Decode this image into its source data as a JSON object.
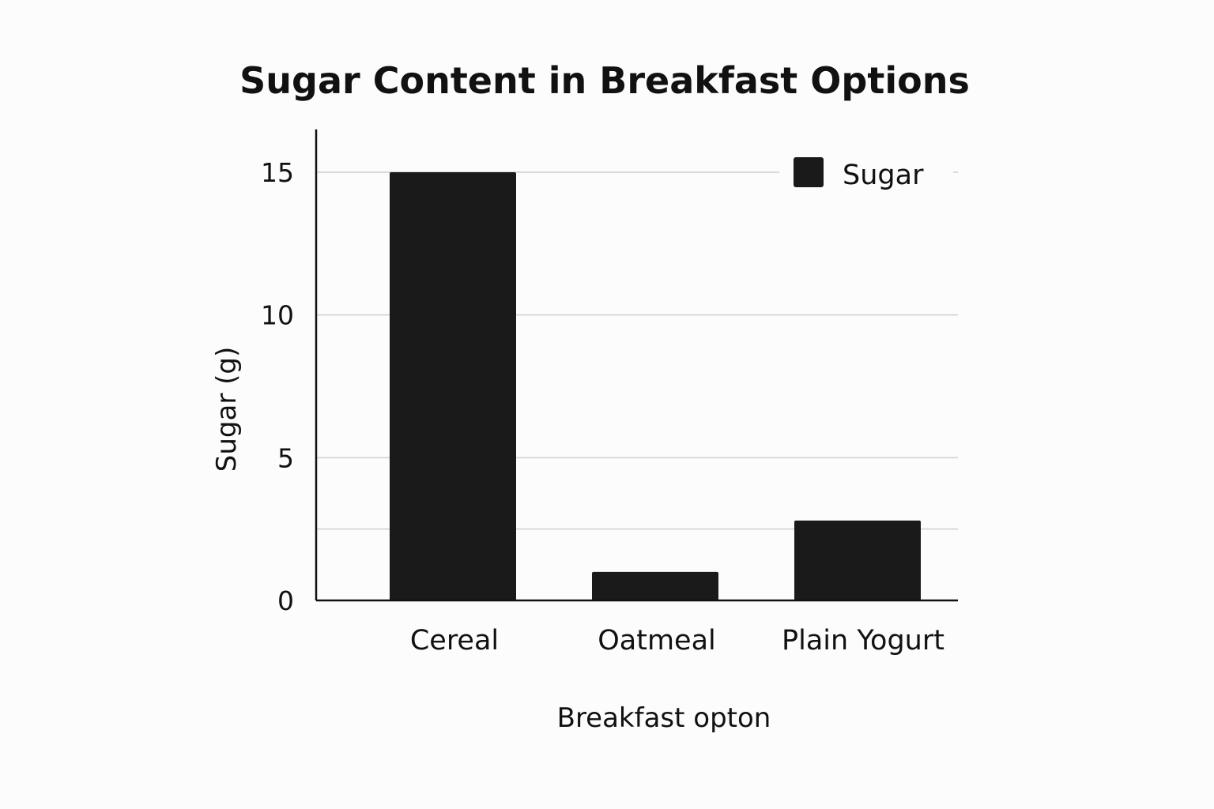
{
  "chart_data": {
    "type": "bar",
    "title": "Sugar Content in Breakfast Options",
    "xlabel": "Breakfast opton",
    "ylabel": "Sugar (g)",
    "categories": [
      "Cereal",
      "Oatmeal",
      "Plain Yogurt"
    ],
    "series": [
      {
        "name": "Sugar",
        "values": [
          15,
          1,
          2.8
        ],
        "color": "#1a1a1a"
      }
    ],
    "yticks": [
      0,
      5,
      10,
      15
    ],
    "gridlines": [
      2.5,
      5,
      10,
      15
    ],
    "ylim": [
      0,
      16.5
    ],
    "grid": true,
    "legend": "top-right"
  }
}
